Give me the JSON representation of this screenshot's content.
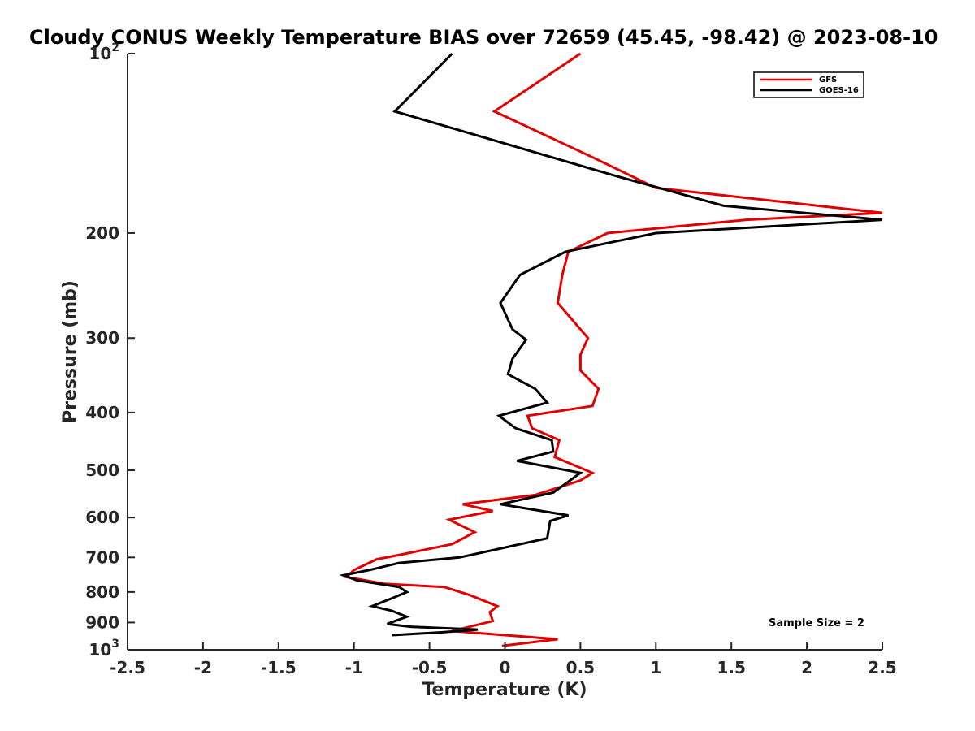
{
  "chart_data": {
    "type": "line",
    "title": "Cloudy CONUS Weekly Temperature BIAS over 72659 (45.45, -98.42) @ 2023-08-10",
    "xlabel": "Temperature (K)",
    "ylabel": "Pressure (mb)",
    "xlim": [
      -2.5,
      2.5
    ],
    "ylim": [
      100,
      1000
    ],
    "y_scale": "log",
    "y_reversed": true,
    "grid": false,
    "legend_position": "top-right",
    "x_ticks": [
      -2.5,
      -2,
      -1.5,
      -1,
      -0.5,
      0,
      0.5,
      1,
      1.5,
      2,
      2.5
    ],
    "x_tick_labels": [
      "-2.5",
      "-2",
      "-1.5",
      "-1",
      "-0.5",
      "0",
      "0.5",
      "1",
      "1.5",
      "2",
      "2.5"
    ],
    "y_ticks": [
      100,
      200,
      300,
      400,
      500,
      600,
      700,
      800,
      900,
      1000
    ],
    "y_tick_labels": [
      {
        "base": "10",
        "exp": "2"
      },
      {
        "base": "200",
        "exp": ""
      },
      {
        "base": "300",
        "exp": ""
      },
      {
        "base": "400",
        "exp": ""
      },
      {
        "base": "500",
        "exp": ""
      },
      {
        "base": "600",
        "exp": ""
      },
      {
        "base": "700",
        "exp": ""
      },
      {
        "base": "800",
        "exp": ""
      },
      {
        "base": "900",
        "exp": ""
      },
      {
        "base": "10",
        "exp": "3"
      }
    ],
    "annotation": "Sample Size = 2",
    "series": [
      {
        "name": "GFS",
        "color": "#e00000",
        "points": [
          [
            0.5,
            100
          ],
          [
            -0.07,
            125
          ],
          [
            0.6,
            150
          ],
          [
            1.0,
            168
          ],
          [
            2.5,
            185
          ],
          [
            1.6,
            190
          ],
          [
            0.68,
            200
          ],
          [
            0.42,
            215
          ],
          [
            0.38,
            235
          ],
          [
            0.35,
            262
          ],
          [
            0.55,
            300
          ],
          [
            0.5,
            320
          ],
          [
            0.5,
            340
          ],
          [
            0.62,
            365
          ],
          [
            0.58,
            390
          ],
          [
            0.15,
            405
          ],
          [
            0.18,
            425
          ],
          [
            0.36,
            445
          ],
          [
            0.33,
            475
          ],
          [
            0.58,
            505
          ],
          [
            0.5,
            520
          ],
          [
            0.2,
            550
          ],
          [
            -0.28,
            570
          ],
          [
            -0.08,
            585
          ],
          [
            -0.37,
            605
          ],
          [
            -0.2,
            635
          ],
          [
            -0.35,
            665
          ],
          [
            -0.72,
            695
          ],
          [
            -0.85,
            705
          ],
          [
            -1.0,
            735
          ],
          [
            -1.05,
            755
          ],
          [
            -0.8,
            775
          ],
          [
            -0.4,
            785
          ],
          [
            -0.23,
            810
          ],
          [
            -0.05,
            845
          ],
          [
            -0.1,
            865
          ],
          [
            -0.08,
            895
          ],
          [
            -0.35,
            930
          ],
          [
            0.35,
            960
          ],
          [
            -0.02,
            985
          ]
        ]
      },
      {
        "name": "GOES-16",
        "color": "#000000",
        "points": [
          [
            -0.35,
            100
          ],
          [
            -0.73,
            125
          ],
          [
            0.72,
            160
          ],
          [
            1.45,
            180
          ],
          [
            2.5,
            190
          ],
          [
            1.0,
            200
          ],
          [
            0.4,
            215
          ],
          [
            0.1,
            235
          ],
          [
            -0.03,
            262
          ],
          [
            0.05,
            290
          ],
          [
            0.14,
            302
          ],
          [
            0.05,
            325
          ],
          [
            0.02,
            345
          ],
          [
            0.2,
            365
          ],
          [
            0.28,
            385
          ],
          [
            -0.04,
            405
          ],
          [
            0.07,
            425
          ],
          [
            0.31,
            445
          ],
          [
            0.32,
            465
          ],
          [
            0.08,
            482
          ],
          [
            0.5,
            505
          ],
          [
            0.32,
            545
          ],
          [
            -0.03,
            570
          ],
          [
            0.42,
            595
          ],
          [
            0.3,
            608
          ],
          [
            0.28,
            650
          ],
          [
            -0.3,
            700
          ],
          [
            -0.7,
            715
          ],
          [
            -0.9,
            735
          ],
          [
            -1.07,
            750
          ],
          [
            -0.98,
            765
          ],
          [
            -0.7,
            785
          ],
          [
            -0.65,
            800
          ],
          [
            -0.75,
            820
          ],
          [
            -0.88,
            845
          ],
          [
            -0.75,
            860
          ],
          [
            -0.65,
            880
          ],
          [
            -0.78,
            905
          ],
          [
            -0.62,
            915
          ],
          [
            -0.18,
            925
          ],
          [
            -0.43,
            935
          ],
          [
            -0.75,
            945
          ]
        ]
      }
    ]
  }
}
